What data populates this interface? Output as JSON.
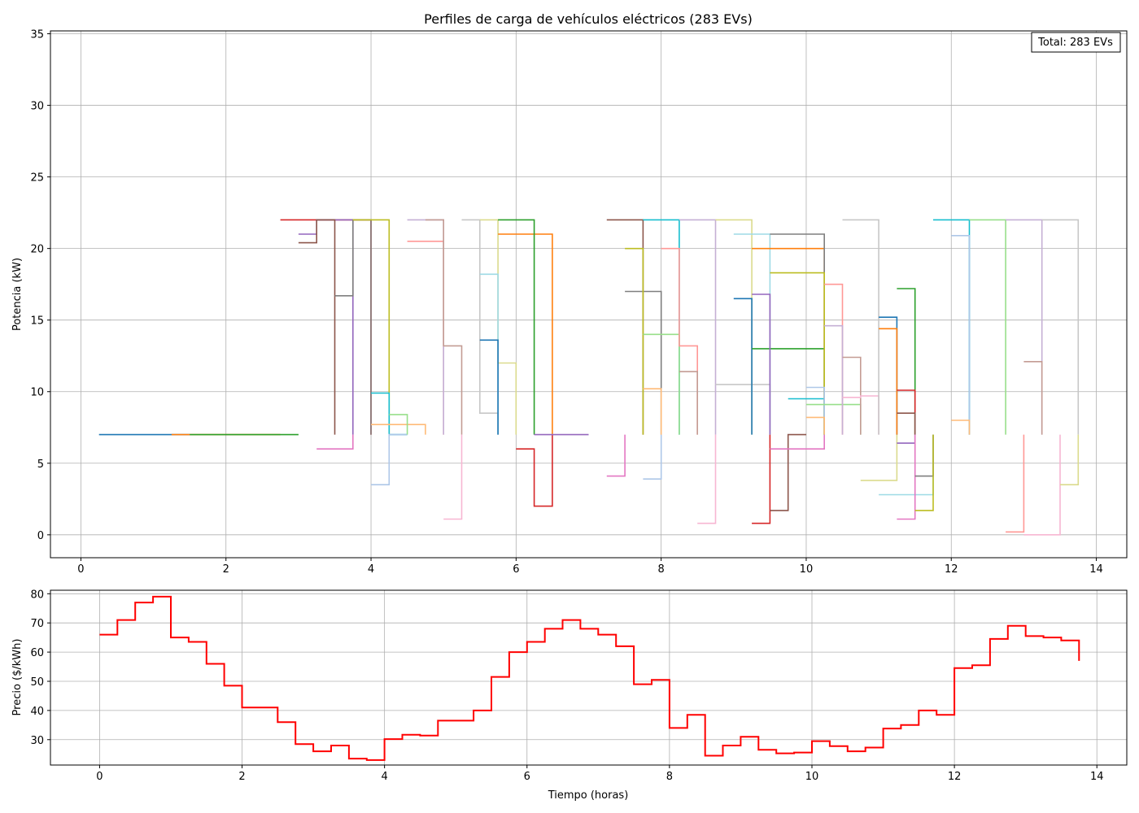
{
  "chart_data": [
    {
      "type": "line",
      "title": "Perfiles de carga de vehículos eléctricos (283 EVs)",
      "xlabel": "",
      "ylabel": "Potencia (kW)",
      "xlim": [
        -0.42,
        14.42
      ],
      "ylim": [
        -1.6,
        35.2
      ],
      "xticks": [
        0,
        2,
        4,
        6,
        8,
        10,
        12,
        14
      ],
      "yticks": [
        0,
        5,
        10,
        15,
        20,
        25,
        30,
        35
      ],
      "xtick_labels": [
        "0",
        "2",
        "4",
        "6",
        "8",
        "10",
        "12",
        "14"
      ],
      "ytick_labels": [
        "0",
        "5",
        "10",
        "15",
        "20",
        "25",
        "30",
        "35"
      ],
      "grid": true,
      "annotation": "Total: 283 EVs",
      "annotation_position": "top-right",
      "colors": [
        "#1f77b4",
        "#ff7f0e",
        "#2ca02c",
        "#d62728",
        "#9467bd",
        "#8c564b",
        "#e377c2",
        "#7f7f7f",
        "#bcbd22",
        "#17becf",
        "#aec7e8",
        "#ffbb78",
        "#98df8a",
        "#ff9896",
        "#c5b0d5",
        "#c49c94",
        "#f7b6d2",
        "#c7c7c7",
        "#dbdb8d",
        "#9edae5"
      ],
      "series": [
        {
          "x": [
            0.25,
            1.0,
            1.25,
            1.5
          ],
          "values": [
            7,
            7,
            7,
            7
          ]
        },
        {
          "x": [
            1.25,
            1.75,
            2.0,
            2.25,
            2.5,
            2.75
          ],
          "values": [
            7,
            7,
            7,
            7,
            7,
            7
          ]
        },
        {
          "x": [
            1.5,
            1.75,
            2.0,
            2.5,
            2.75,
            3.0
          ],
          "values": [
            7,
            7,
            7,
            7,
            7,
            7
          ]
        },
        {
          "x": [
            2.75,
            3.0,
            3.25,
            3.5,
            3.75,
            4.0
          ],
          "values": [
            22,
            22,
            22,
            22,
            22,
            7
          ]
        },
        {
          "x": [
            3.0,
            3.25,
            3.5,
            3.75
          ],
          "values": [
            21,
            22,
            22,
            7
          ]
        },
        {
          "x": [
            3.0,
            3.25,
            3.5
          ],
          "values": [
            20.4,
            22,
            7
          ]
        },
        {
          "x": [
            3.25,
            3.5,
            3.75
          ],
          "values": [
            6,
            6,
            7
          ]
        },
        {
          "x": [
            3.5,
            3.75,
            4.0
          ],
          "values": [
            16.7,
            22,
            7
          ]
        },
        {
          "x": [
            3.75,
            4.0,
            4.25
          ],
          "values": [
            22,
            22,
            7
          ]
        },
        {
          "x": [
            4.0,
            4.25,
            4.5
          ],
          "values": [
            9.9,
            7,
            7
          ]
        },
        {
          "x": [
            4.0,
            4.25,
            4.5
          ],
          "values": [
            3.5,
            7,
            7
          ]
        },
        {
          "x": [
            4.0,
            4.5,
            4.75
          ],
          "values": [
            7.7,
            7.7,
            7
          ]
        },
        {
          "x": [
            4.25,
            4.5
          ],
          "values": [
            8.4,
            7
          ]
        },
        {
          "x": [
            4.5,
            4.75,
            5.0
          ],
          "values": [
            20.5,
            20.5,
            7
          ]
        },
        {
          "x": [
            4.5,
            4.75,
            5.0
          ],
          "values": [
            22,
            22,
            7
          ]
        },
        {
          "x": [
            4.75,
            5.0,
            5.25
          ],
          "values": [
            22,
            13.2,
            7
          ]
        },
        {
          "x": [
            5.0,
            5.25
          ],
          "values": [
            1.1,
            7
          ]
        },
        {
          "x": [
            5.25,
            5.5,
            5.75
          ],
          "values": [
            22,
            8.5,
            7
          ]
        },
        {
          "x": [
            5.5,
            5.75,
            6.0
          ],
          "values": [
            22,
            12,
            7
          ]
        },
        {
          "x": [
            5.5,
            5.75
          ],
          "values": [
            18.2,
            7
          ]
        },
        {
          "x": [
            5.5,
            5.75
          ],
          "values": [
            13.6,
            7
          ]
        },
        {
          "x": [
            5.75,
            6.0,
            6.25,
            6.5
          ],
          "values": [
            21,
            21,
            21,
            7
          ]
        },
        {
          "x": [
            5.75,
            6.0,
            6.25
          ],
          "values": [
            22,
            22,
            7
          ]
        },
        {
          "x": [
            6.0,
            6.25,
            6.5
          ],
          "values": [
            6,
            2,
            7
          ]
        },
        {
          "x": [
            6.25,
            6.5,
            6.75,
            7.0
          ],
          "values": [
            7,
            7,
            7,
            7
          ]
        },
        {
          "x": [
            7.25,
            7.5,
            7.75
          ],
          "values": [
            22,
            22,
            7
          ]
        },
        {
          "x": [
            7.25,
            7.5
          ],
          "values": [
            4.1,
            7
          ]
        },
        {
          "x": [
            7.5,
            7.75,
            8.0
          ],
          "values": [
            17,
            17,
            7
          ]
        },
        {
          "x": [
            7.5,
            7.75
          ],
          "values": [
            20,
            7
          ]
        },
        {
          "x": [
            7.75,
            8.0,
            8.25
          ],
          "values": [
            22,
            22,
            7
          ]
        },
        {
          "x": [
            7.75,
            8.0
          ],
          "values": [
            3.9,
            7
          ]
        },
        {
          "x": [
            7.75,
            8.0
          ],
          "values": [
            10.2,
            7
          ]
        },
        {
          "x": [
            7.75,
            8.0,
            8.25
          ],
          "values": [
            14,
            14,
            7
          ]
        },
        {
          "x": [
            8.0,
            8.25,
            8.5
          ],
          "values": [
            20,
            13.2,
            7
          ]
        },
        {
          "x": [
            8.25,
            8.5,
            8.75
          ],
          "values": [
            22,
            22,
            7
          ]
        },
        {
          "x": [
            8.25,
            8.5
          ],
          "values": [
            11.4,
            7
          ]
        },
        {
          "x": [
            8.5,
            8.75
          ],
          "values": [
            0.8,
            7
          ]
        },
        {
          "x": [
            8.75,
            9.0,
            9.25,
            9.5
          ],
          "values": [
            10.5,
            10.5,
            10.5,
            7
          ]
        },
        {
          "x": [
            8.75,
            9.0,
            9.25
          ],
          "values": [
            22,
            22,
            7
          ]
        },
        {
          "x": [
            9.0,
            9.25,
            9.5
          ],
          "values": [
            21,
            21,
            7
          ]
        },
        {
          "x": [
            9.0,
            9.25
          ],
          "values": [
            16.5,
            7
          ]
        },
        {
          "x": [
            9.25,
            9.5,
            9.75,
            10.0,
            10.25
          ],
          "values": [
            20,
            20,
            20,
            20,
            7
          ]
        },
        {
          "x": [
            9.25,
            9.5,
            9.75,
            10.0,
            10.25
          ],
          "values": [
            13,
            13,
            13,
            13,
            7
          ]
        },
        {
          "x": [
            9.25,
            9.5
          ],
          "values": [
            0.8,
            7
          ]
        },
        {
          "x": [
            9.25,
            9.5
          ],
          "values": [
            16.8,
            7
          ]
        },
        {
          "x": [
            9.5,
            9.75,
            10.0
          ],
          "values": [
            1.7,
            7,
            7
          ]
        },
        {
          "x": [
            9.5,
            9.75,
            10.0,
            10.25
          ],
          "values": [
            6,
            6,
            6,
            7
          ]
        },
        {
          "x": [
            9.5,
            9.75,
            10.0,
            10.25
          ],
          "values": [
            21,
            21,
            21,
            7
          ]
        },
        {
          "x": [
            9.5,
            9.75,
            10.0,
            10.25
          ],
          "values": [
            18.3,
            18.3,
            18.3,
            7
          ]
        },
        {
          "x": [
            9.75,
            10.0,
            10.25
          ],
          "values": [
            9.5,
            9.5,
            7
          ]
        },
        {
          "x": [
            10.0,
            10.25
          ],
          "values": [
            10.3,
            7
          ]
        },
        {
          "x": [
            10.0,
            10.25
          ],
          "values": [
            8.2,
            7
          ]
        },
        {
          "x": [
            10.0,
            10.25,
            10.5,
            10.75
          ],
          "values": [
            9.1,
            9.1,
            9.1,
            7
          ]
        },
        {
          "x": [
            10.25,
            10.5
          ],
          "values": [
            17.5,
            7
          ]
        },
        {
          "x": [
            10.25,
            10.5
          ],
          "values": [
            14.6,
            7
          ]
        },
        {
          "x": [
            10.5,
            10.75
          ],
          "values": [
            12.4,
            7
          ]
        },
        {
          "x": [
            10.5,
            10.75,
            11.0
          ],
          "values": [
            9.6,
            9.7,
            7
          ]
        },
        {
          "x": [
            10.5,
            10.75,
            11.0
          ],
          "values": [
            22,
            22,
            7
          ]
        },
        {
          "x": [
            10.75,
            11.0,
            11.25
          ],
          "values": [
            3.8,
            3.8,
            7
          ]
        },
        {
          "x": [
            11.0,
            11.25,
            11.5,
            11.75
          ],
          "values": [
            2.8,
            2.8,
            2.8,
            7
          ]
        },
        {
          "x": [
            11.0,
            11.25
          ],
          "values": [
            15.2,
            7
          ]
        },
        {
          "x": [
            11.0,
            11.25
          ],
          "values": [
            14.4,
            7
          ]
        },
        {
          "x": [
            11.25,
            11.5
          ],
          "values": [
            17.2,
            7
          ]
        },
        {
          "x": [
            11.25,
            11.5
          ],
          "values": [
            10.1,
            7
          ]
        },
        {
          "x": [
            11.25,
            11.5
          ],
          "values": [
            6.4,
            7
          ]
        },
        {
          "x": [
            11.25,
            11.5
          ],
          "values": [
            8.5,
            7
          ]
        },
        {
          "x": [
            11.25,
            11.5
          ],
          "values": [
            1.1,
            7
          ]
        },
        {
          "x": [
            11.5,
            11.75
          ],
          "values": [
            4.1,
            7
          ]
        },
        {
          "x": [
            11.5,
            11.75
          ],
          "values": [
            1.7,
            7
          ]
        },
        {
          "x": [
            11.75,
            12.0,
            12.25
          ],
          "values": [
            22,
            22,
            7
          ]
        },
        {
          "x": [
            12.0,
            12.25
          ],
          "values": [
            20.9,
            7
          ]
        },
        {
          "x": [
            12.0,
            12.25
          ],
          "values": [
            8,
            7
          ]
        },
        {
          "x": [
            12.25,
            12.5,
            12.75
          ],
          "values": [
            22,
            22,
            7
          ]
        },
        {
          "x": [
            12.75,
            13.0
          ],
          "values": [
            0.2,
            7
          ]
        },
        {
          "x": [
            12.75,
            13.0,
            13.25
          ],
          "values": [
            22,
            22,
            7
          ]
        },
        {
          "x": [
            13.0,
            13.25
          ],
          "values": [
            12.1,
            7
          ]
        },
        {
          "x": [
            13.0,
            13.25,
            13.5
          ],
          "values": [
            0,
            0,
            7
          ]
        },
        {
          "x": [
            13.25,
            13.5,
            13.75
          ],
          "values": [
            22,
            22,
            7
          ]
        },
        {
          "x": [
            13.5,
            13.75
          ],
          "values": [
            3.5,
            7
          ]
        }
      ]
    },
    {
      "type": "line",
      "title": "",
      "xlabel": "Tiempo (horas)",
      "ylabel": "Precio ($/kWh)",
      "xlim": [
        -0.69,
        14.42
      ],
      "ylim": [
        21.3,
        81.2
      ],
      "xticks": [
        0,
        2,
        4,
        6,
        8,
        10,
        12,
        14
      ],
      "yticks": [
        30,
        40,
        50,
        60,
        70,
        80
      ],
      "xtick_labels": [
        "0",
        "2",
        "4",
        "6",
        "8",
        "10",
        "12",
        "14"
      ],
      "ytick_labels": [
        "30",
        "40",
        "50",
        "60",
        "70",
        "80"
      ],
      "grid": true,
      "series": [
        {
          "color": "#ff0000",
          "x": [
            0,
            0.25,
            0.5,
            0.75,
            1.0,
            1.25,
            1.5,
            1.75,
            2.0,
            2.25,
            2.5,
            2.75,
            3.0,
            3.25,
            3.5,
            3.75,
            4.0,
            4.25,
            4.5,
            4.75,
            5.0,
            5.25,
            5.5,
            5.75,
            6.0,
            6.25,
            6.5,
            6.75,
            7.0,
            7.25,
            7.5,
            7.75,
            8.0,
            8.25,
            8.5,
            8.75,
            9.0,
            9.25,
            9.5,
            9.75,
            10.0,
            10.25,
            10.5,
            10.75,
            11.0,
            11.25,
            11.5,
            11.75,
            12.0,
            12.25,
            12.5,
            12.75,
            13.0,
            13.25,
            13.5,
            13.75
          ],
          "values": [
            66,
            71,
            77,
            79,
            65,
            63.5,
            56,
            48.5,
            41,
            41,
            36,
            28.5,
            26,
            28,
            23.5,
            23,
            30.2,
            31.7,
            31.4,
            36.5,
            36.5,
            40,
            51.5,
            60,
            63.5,
            68,
            71,
            68,
            66,
            62,
            49,
            50.5,
            34,
            38.5,
            24.5,
            28,
            31,
            26.5,
            25.3,
            25.6,
            29.5,
            27.8,
            26,
            27.3,
            33.8,
            35,
            40,
            38.5,
            54.5,
            55.5,
            64.5,
            69,
            65.5,
            65,
            64,
            57
          ]
        }
      ]
    }
  ]
}
